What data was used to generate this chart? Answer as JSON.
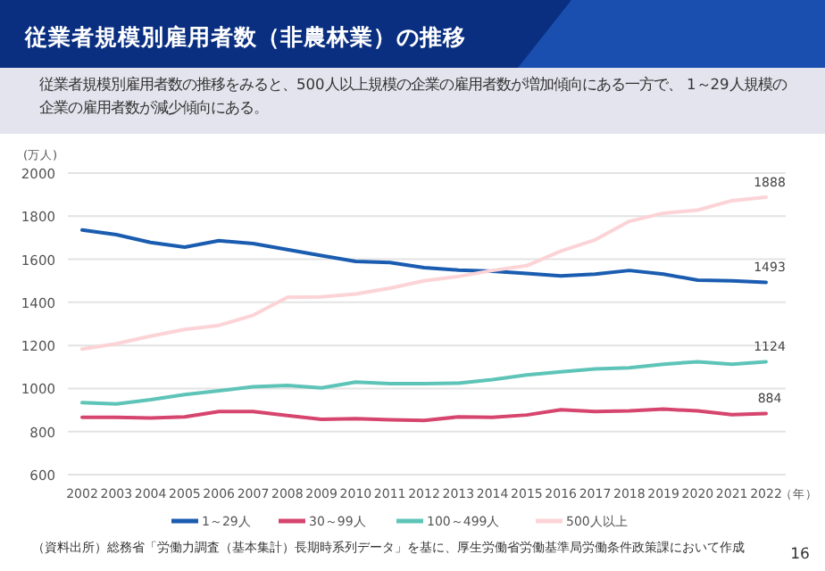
{
  "chart_data": {
    "type": "line",
    "title": "従業者規模別雇用者数（非農林業）の推移",
    "subtitle": "従業者規模別雇用者数の推移をみると、500人以上規模の企業の雇用者数が増加傾向にある一方で、 1～29人規模の企業の雇用者数が減少傾向にある。",
    "ylabel": "(万人)",
    "xlabel": "（年）",
    "categories": [
      "2002",
      "2003",
      "2004",
      "2005",
      "2006",
      "2007",
      "2008",
      "2009",
      "2010",
      "2011",
      "2012",
      "2013",
      "2014",
      "2015",
      "2016",
      "2017",
      "2018",
      "2019",
      "2020",
      "2021",
      "2022"
    ],
    "ylim": [
      600,
      2000
    ],
    "yticks": [
      600,
      800,
      1000,
      1200,
      1400,
      1600,
      1800,
      2000
    ],
    "grid": "y",
    "legend": "bottom",
    "series": [
      {
        "name": "1～29人",
        "color": "#1a5cb0",
        "values": [
          1736,
          1714,
          1678,
          1656,
          1686,
          1673,
          1645,
          1617,
          1590,
          1585,
          1561,
          1550,
          1544,
          1534,
          1523,
          1531,
          1548,
          1531,
          1503,
          1500,
          1493
        ],
        "value_labels": [
          null,
          null,
          null,
          null,
          null,
          null,
          null,
          null,
          null,
          null,
          null,
          null,
          null,
          null,
          null,
          null,
          null,
          null,
          null,
          null,
          "1493"
        ]
      },
      {
        "name": "30～99人",
        "color": "#d6456d",
        "values": [
          866,
          866,
          863,
          868,
          893,
          893,
          874,
          857,
          860,
          855,
          852,
          868,
          866,
          877,
          901,
          893,
          896,
          904,
          896,
          879,
          884
        ],
        "value_labels": [
          null,
          null,
          null,
          null,
          null,
          null,
          null,
          null,
          null,
          null,
          null,
          null,
          null,
          null,
          null,
          null,
          null,
          null,
          null,
          null,
          "884"
        ]
      },
      {
        "name": "100～499人",
        "color": "#5ec4b8",
        "values": [
          934,
          928,
          948,
          972,
          989,
          1008,
          1014,
          1003,
          1030,
          1022,
          1022,
          1025,
          1041,
          1063,
          1077,
          1091,
          1096,
          1113,
          1124,
          1113,
          1124
        ],
        "value_labels": [
          null,
          null,
          null,
          null,
          null,
          null,
          null,
          null,
          null,
          null,
          null,
          null,
          null,
          null,
          null,
          null,
          null,
          null,
          null,
          null,
          "1124"
        ]
      },
      {
        "name": "500人以上",
        "color": "#fcd3d6",
        "values": [
          1183,
          1208,
          1243,
          1274,
          1293,
          1340,
          1423,
          1425,
          1439,
          1466,
          1500,
          1520,
          1548,
          1570,
          1638,
          1690,
          1776,
          1814,
          1828,
          1872,
          1888
        ],
        "value_labels": [
          null,
          null,
          null,
          null,
          null,
          null,
          null,
          null,
          null,
          null,
          null,
          null,
          null,
          null,
          null,
          null,
          null,
          null,
          null,
          null,
          "1888"
        ]
      }
    ],
    "annotations": [
      "（資料出所）総務省「労働力調査（基本集計）長期時系列データ」を基に、厚生労働省労働基準局労働条件政策課において作成",
      "16"
    ]
  }
}
